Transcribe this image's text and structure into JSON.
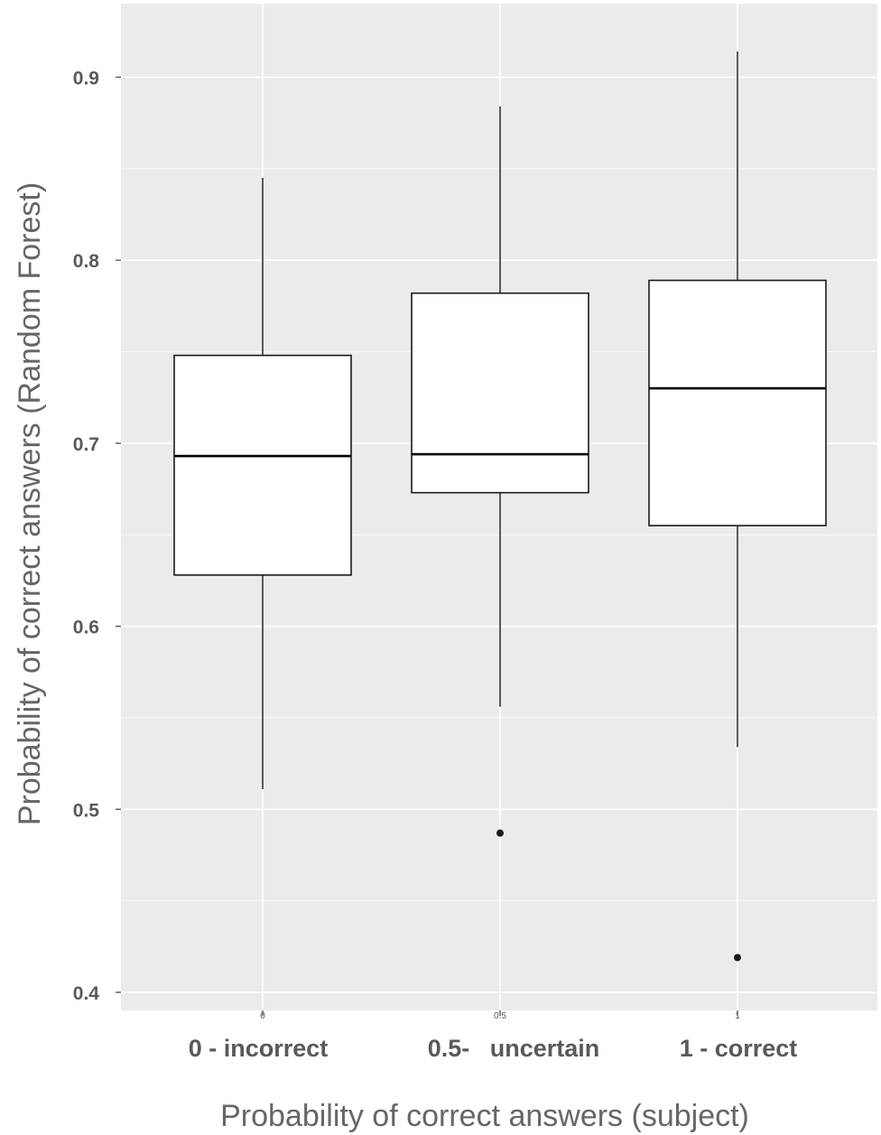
{
  "chart_data": {
    "type": "boxplot",
    "xlabel": "Probability of correct answers (subject)",
    "ylabel": "Probability of correct answers (Random Forest)",
    "ylim": [
      0.4,
      0.93
    ],
    "yticks": [
      "0.4",
      "0.5",
      "0.6",
      "0.7",
      "0.8",
      "0.9"
    ],
    "grid": true,
    "categories": [
      {
        "tick": "0",
        "label": "0 - incorrect",
        "whisker_low": 0.511,
        "q1": 0.628,
        "median": 0.693,
        "q3": 0.748,
        "whisker_high": 0.845,
        "outliers": []
      },
      {
        "tick": "0.5",
        "label": "0.5-   uncertain",
        "whisker_low": 0.556,
        "q1": 0.673,
        "median": 0.694,
        "q3": 0.782,
        "whisker_high": 0.884,
        "outliers": [
          0.487
        ]
      },
      {
        "tick": "1",
        "label": "1 - correct",
        "whisker_low": 0.534,
        "q1": 0.655,
        "median": 0.73,
        "q3": 0.789,
        "whisker_high": 0.914,
        "outliers": [
          0.419
        ]
      }
    ]
  }
}
